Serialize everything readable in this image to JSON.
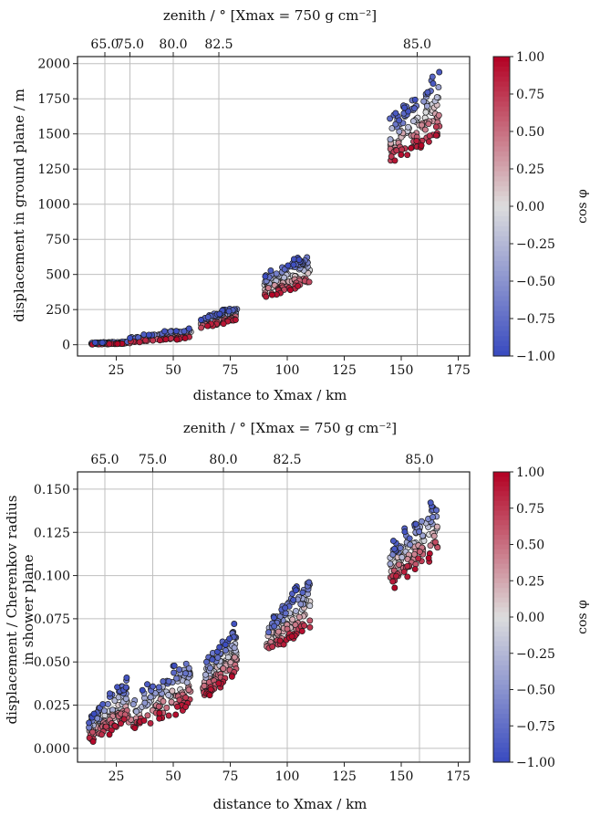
{
  "chart_data": [
    {
      "type": "scatter",
      "panel": "top",
      "top_axis_title": "zenith / ° [Xmax = 750 g cm⁻²]",
      "top_axis_ticks": [
        "65.0",
        "75.0",
        "80.0",
        "82.5",
        "85.0"
      ],
      "top_axis_tick_positions_km": [
        20,
        31,
        50,
        70,
        157
      ],
      "xlabel": "distance to Xmax / km",
      "ylabel": "displacement in ground plane / m",
      "xlim": [
        8,
        180
      ],
      "ylim": [
        -80,
        2050
      ],
      "xticks": [
        25,
        50,
        75,
        100,
        125,
        150,
        175
      ],
      "yticks": [
        0,
        250,
        500,
        750,
        1000,
        1250,
        1500,
        1750,
        2000
      ],
      "grid": true,
      "color_variable": "cos φ",
      "clusters": [
        {
          "zenith": "65.0",
          "x_range": [
            14,
            31
          ],
          "y_at_cos_minus1": [
            8,
            25
          ],
          "y_at_cos_plus1": [
            0,
            8
          ]
        },
        {
          "zenith": "75.0",
          "x_range": [
            31,
            58
          ],
          "y_at_cos_minus1": [
            25,
            120
          ],
          "y_at_cos_plus1": [
            8,
            45
          ]
        },
        {
          "zenith": "80.0",
          "x_range": [
            62,
            78
          ],
          "y_at_cos_minus1": [
            160,
            270
          ],
          "y_at_cos_plus1": [
            100,
            175
          ]
        },
        {
          "zenith": "82.5",
          "x_range": [
            90,
            110
          ],
          "y_at_cos_minus1": [
            450,
            650
          ],
          "y_at_cos_plus1": [
            300,
            420
          ]
        },
        {
          "zenith": "85.0",
          "x_range": [
            145,
            167
          ],
          "y_at_cos_minus1": [
            1480,
            1940
          ],
          "y_at_cos_plus1": [
            1230,
            1490
          ]
        }
      ]
    },
    {
      "type": "scatter",
      "panel": "bottom",
      "top_axis_title": "zenith / ° [Xmax = 750 g cm⁻²]",
      "top_axis_ticks": [
        "65.0",
        "75.0",
        "80.0",
        "82.5",
        "85.0"
      ],
      "top_axis_tick_positions_km": [
        20,
        41,
        72,
        100,
        158
      ],
      "xlabel": "distance to Xmax / km",
      "ylabel": "displacement / Cherenkov radius in shower plane",
      "xlim": [
        8,
        180
      ],
      "ylim": [
        -0.008,
        0.16
      ],
      "xticks": [
        25,
        50,
        75,
        100,
        125,
        150,
        175
      ],
      "yticks": [
        0.0,
        0.025,
        0.05,
        0.075,
        0.1,
        0.125,
        0.15
      ],
      "grid": true,
      "color_variable": "cos φ",
      "clusters": [
        {
          "zenith": "65.0",
          "x_range": [
            13,
            30
          ],
          "y_at_cos_minus1": [
            0.01,
            0.04
          ],
          "y_at_cos_plus1": [
            0.0,
            0.015
          ]
        },
        {
          "zenith": "75.0",
          "x_range": [
            30,
            58
          ],
          "y_at_cos_minus1": [
            0.018,
            0.052
          ],
          "y_at_cos_plus1": [
            0.005,
            0.025
          ]
        },
        {
          "zenith": "80.0",
          "x_range": [
            63,
            78
          ],
          "y_at_cos_minus1": [
            0.04,
            0.072
          ],
          "y_at_cos_plus1": [
            0.025,
            0.042
          ]
        },
        {
          "zenith": "82.5",
          "x_range": [
            91,
            110
          ],
          "y_at_cos_minus1": [
            0.062,
            0.099
          ],
          "y_at_cos_plus1": [
            0.052,
            0.068
          ]
        },
        {
          "zenith": "85.0",
          "x_range": [
            145,
            166
          ],
          "y_at_cos_minus1": [
            0.105,
            0.146
          ],
          "y_at_cos_plus1": [
            0.088,
            0.112
          ]
        }
      ]
    }
  ],
  "colorbar": {
    "label": "cos φ",
    "ticks": [
      "1.00",
      "0.75",
      "0.50",
      "0.25",
      "0.00",
      "−0.25",
      "−0.50",
      "−0.75",
      "−1.00"
    ],
    "colors": {
      "low": "#3b4cc0",
      "mid": "#dddddd",
      "high": "#b40426"
    }
  }
}
